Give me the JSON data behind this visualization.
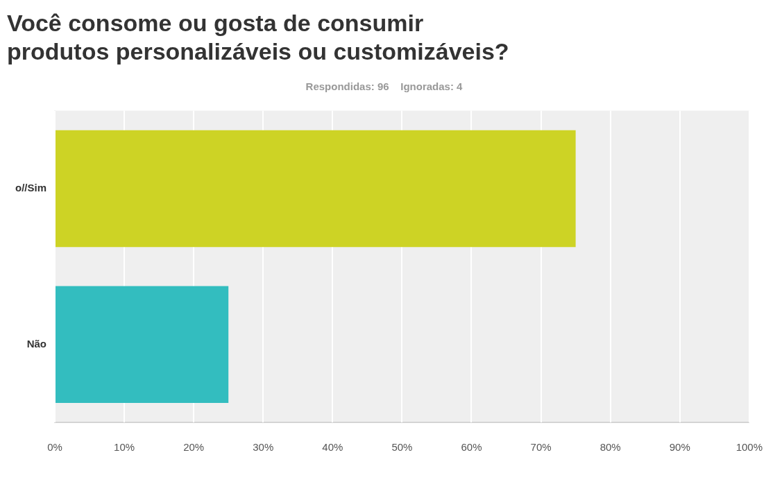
{
  "chart_data": {
    "type": "bar",
    "orientation": "horizontal",
    "title": "Você consome ou gosta de consumir\nprodutos personalizáveis ou customizáveis?",
    "subtitle": "Respondidas: 96    Ignoradas: 4",
    "categories": [
      "o//Sim",
      "Não"
    ],
    "values": [
      75,
      25
    ],
    "colors": [
      "#cdd325",
      "#33bdbf"
    ],
    "xlim": [
      0,
      100
    ],
    "xticks": [
      {
        "value": 0,
        "label": "0%"
      },
      {
        "value": 10,
        "label": "10%"
      },
      {
        "value": 20,
        "label": "20%"
      },
      {
        "value": 30,
        "label": "30%"
      },
      {
        "value": 40,
        "label": "40%"
      },
      {
        "value": 50,
        "label": "50%"
      },
      {
        "value": 60,
        "label": "60%"
      },
      {
        "value": 70,
        "label": "70%"
      },
      {
        "value": 80,
        "label": "80%"
      },
      {
        "value": 90,
        "label": "90%"
      },
      {
        "value": 100,
        "label": "100%"
      }
    ],
    "grid": "x"
  }
}
